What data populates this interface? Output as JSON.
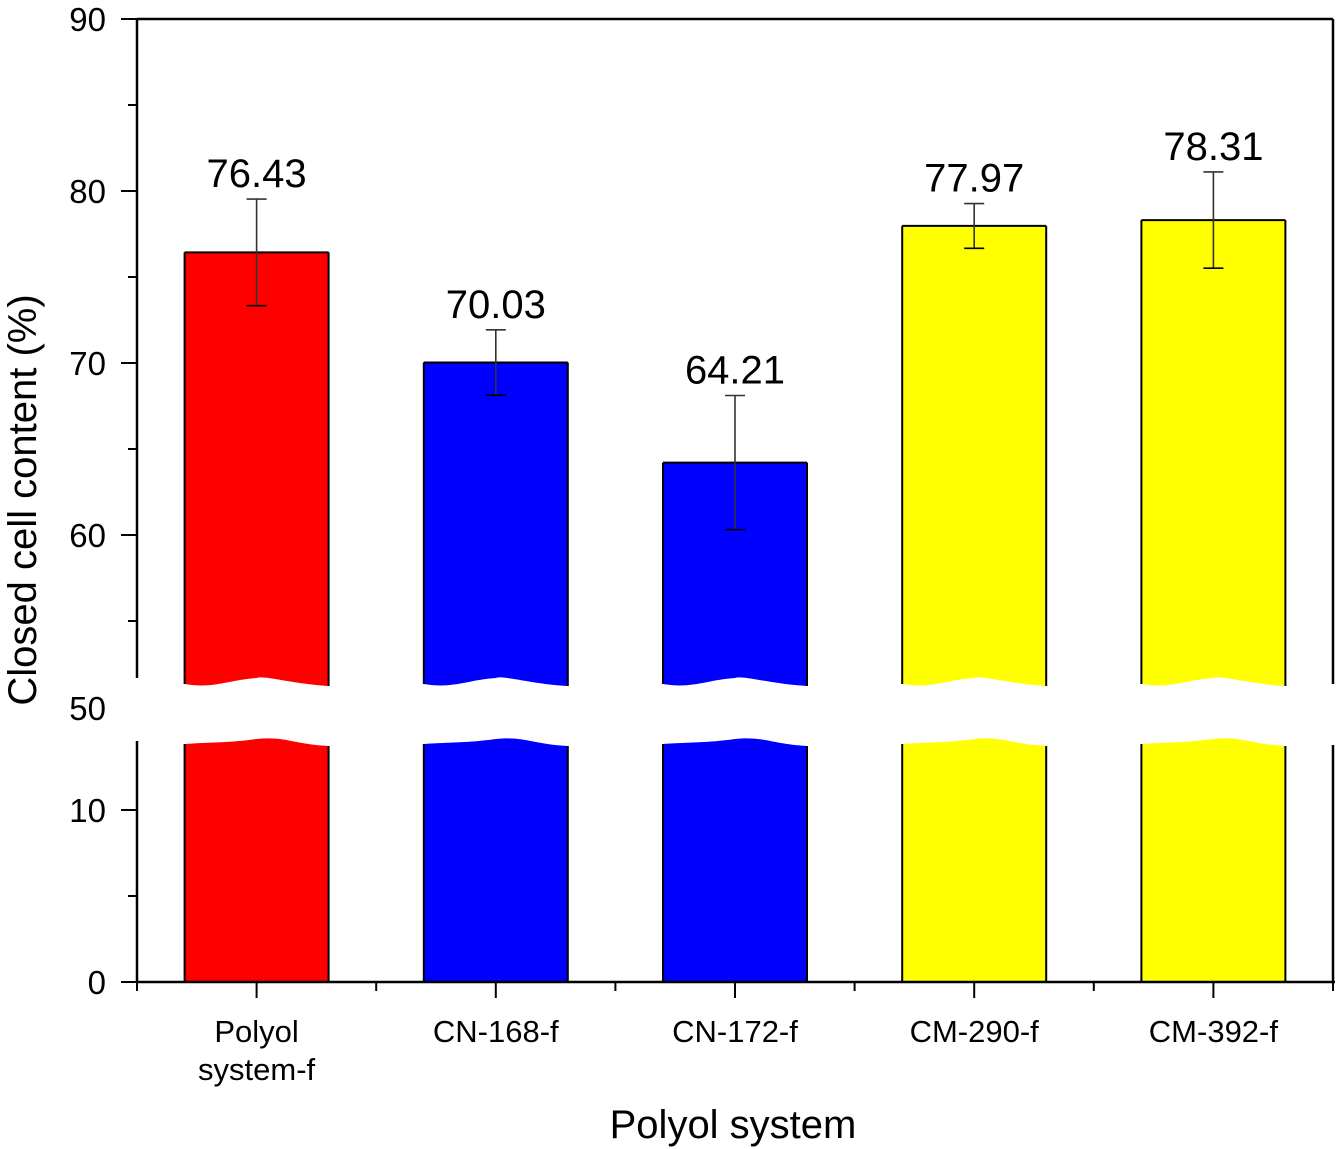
{
  "chart_data": {
    "type": "bar",
    "title": "",
    "xlabel": "Polyol system",
    "ylabel": "Closed cell content  (%)",
    "categories": [
      [
        "Polyol",
        "system-f"
      ],
      [
        "CN-168-f"
      ],
      [
        "CN-172-f"
      ],
      [
        "CM-290-f"
      ],
      [
        "CM-392-f"
      ]
    ],
    "values": [
      76.43,
      70.03,
      64.21,
      77.97,
      78.31
    ],
    "value_labels": [
      "76.43",
      "70.03",
      "64.21",
      "77.97",
      "78.31"
    ],
    "errors": [
      3.1,
      1.9,
      3.9,
      1.3,
      2.8
    ],
    "colors": [
      "#ff0000",
      "#0000ff",
      "#0000ff",
      "#ffff00",
      "#ffff00"
    ],
    "y_axis_break": {
      "lower_range": [
        0,
        13.5
      ],
      "upper_range": [
        52,
        90
      ],
      "break_label": "50"
    },
    "lower_ticks": [
      0,
      10
    ],
    "lower_tick_labels": [
      "0",
      "10"
    ],
    "upper_ticks": [
      60,
      70,
      80,
      90
    ],
    "upper_tick_labels": [
      "60",
      "70",
      "80",
      "90"
    ],
    "grid": false,
    "legend": "none"
  }
}
